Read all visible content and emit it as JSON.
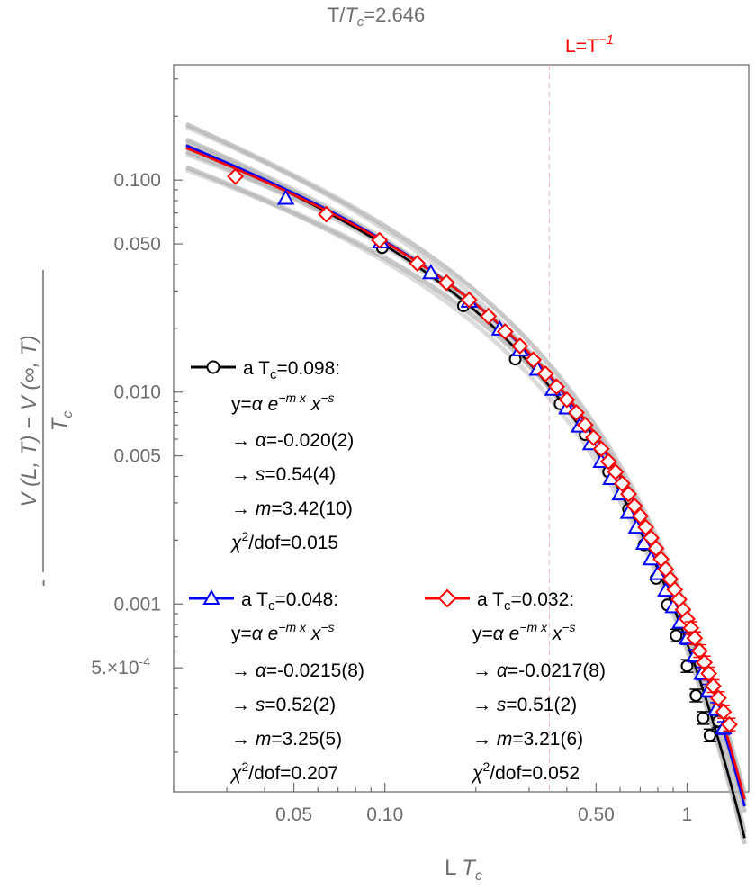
{
  "chart_data": {
    "type": "scatter",
    "title": "T/T_c=2.646",
    "title_parts": {
      "T": "T/",
      "Tc": "T",
      "sub": "c",
      "rest": "=2.646"
    },
    "xlabel": "L T_c",
    "xlabel_parts": {
      "L": "L ",
      "T": "T",
      "sub": "c"
    },
    "ylabel": "-(V(L, T) - V(∞, T))/T_c",
    "ylabel_parts": {
      "minus": "-",
      "num": "V (L, T) − V (∞, T)",
      "den": "T",
      "sub": "c"
    },
    "xscale": "log",
    "yscale": "log",
    "xlim": [
      0.02,
      1.6
    ],
    "ylim": [
      0.00013,
      0.35
    ],
    "grid": false,
    "xticks": [
      {
        "v": 0.05,
        "label": "0.05"
      },
      {
        "v": 0.1,
        "label": "0.10"
      },
      {
        "v": 0.5,
        "label": "0.50"
      },
      {
        "v": 1,
        "label": "1"
      }
    ],
    "yticks": [
      {
        "v": 0.1,
        "label": "0.100"
      },
      {
        "v": 0.05,
        "label": "0.050"
      },
      {
        "v": 0.01,
        "label": "0.010"
      },
      {
        "v": 0.005,
        "label": "0.005"
      },
      {
        "v": 0.001,
        "label": "0.001"
      },
      {
        "v": 0.0005,
        "label": "5.×10",
        "exp": "-4"
      }
    ],
    "reference_line": {
      "x": 0.35,
      "label": "L=T",
      "exp": "−1",
      "color": "#ff0000"
    },
    "series": [
      {
        "name": "a T_c=0.098",
        "color": "#000000",
        "marker": "circle",
        "alpha": -0.02,
        "s": 0.54,
        "m": 3.42,
        "fit_x": [
          0.022,
          1.55
        ],
        "points": {
          "x": [
            0.098,
            0.182,
            0.27,
            0.38,
            0.46,
            0.55,
            0.64,
            0.72,
            0.79,
            0.86,
            0.92,
            1.0,
            1.07,
            1.13,
            1.19,
            1.27
          ],
          "y": [
            0.048,
            0.0255,
            0.0143,
            0.0088,
            0.0063,
            0.0042,
            0.0028,
            0.0019,
            0.00132,
            0.00099,
            0.00071,
            0.00051,
            0.00037,
            0.00029,
            0.00024,
            0.00028
          ]
        }
      },
      {
        "name": "a T_c=0.048",
        "color": "#0000ff",
        "marker": "triangle",
        "alpha": -0.0215,
        "s": 0.52,
        "m": 3.25,
        "fit_x": [
          0.022,
          1.55
        ],
        "points": {
          "x": [
            0.047,
            0.097,
            0.142,
            0.19,
            0.24,
            0.28,
            0.32,
            0.36,
            0.4,
            0.44,
            0.48,
            0.52,
            0.56,
            0.6,
            0.64,
            0.68,
            0.72,
            0.76,
            0.8,
            0.85,
            0.9,
            0.95,
            1.0,
            1.06,
            1.12,
            1.18,
            1.25,
            1.32
          ],
          "y": [
            0.082,
            0.051,
            0.0365,
            0.0268,
            0.0198,
            0.0158,
            0.0128,
            0.0103,
            0.0084,
            0.0069,
            0.0057,
            0.0047,
            0.0039,
            0.0033,
            0.0027,
            0.0023,
            0.00193,
            0.00163,
            0.00139,
            0.00116,
            0.00097,
            0.00082,
            0.00069,
            0.00057,
            0.00047,
            0.00039,
            0.00032,
            0.00026
          ]
        }
      },
      {
        "name": "a T_c=0.032",
        "color": "#ff0000",
        "marker": "diamond",
        "alpha": -0.0217,
        "s": 0.51,
        "m": 3.21,
        "fit_x": [
          0.022,
          1.55
        ],
        "points": {
          "x": [
            0.032,
            0.064,
            0.096,
            0.128,
            0.16,
            0.19,
            0.22,
            0.25,
            0.28,
            0.31,
            0.34,
            0.37,
            0.4,
            0.43,
            0.46,
            0.49,
            0.52,
            0.55,
            0.58,
            0.61,
            0.64,
            0.67,
            0.7,
            0.73,
            0.76,
            0.79,
            0.82,
            0.85,
            0.88,
            0.91,
            0.94,
            0.97,
            1.0,
            1.03,
            1.06,
            1.1,
            1.14,
            1.18,
            1.22,
            1.27,
            1.32,
            1.38
          ],
          "y": [
            0.104,
            0.069,
            0.052,
            0.0405,
            0.0328,
            0.0272,
            0.0228,
            0.0193,
            0.0165,
            0.0142,
            0.0122,
            0.0106,
            0.0092,
            0.008,
            0.007,
            0.0061,
            0.0054,
            0.0047,
            0.0042,
            0.0037,
            0.0033,
            0.0029,
            0.0026,
            0.0023,
            0.00205,
            0.00183,
            0.00163,
            0.00146,
            0.00131,
            0.00117,
            0.00105,
            0.00094,
            0.00085,
            0.00077,
            0.00069,
            0.0006,
            0.00053,
            0.00047,
            0.00041,
            0.00036,
            0.00031,
            0.00027
          ]
        }
      }
    ]
  },
  "legend": {
    "black": {
      "label": "a T",
      "sub": "c",
      "value": "=0.098:",
      "formula": {
        "y": "y=",
        "alpha": "α",
        "e": "e",
        "exp": "−m x",
        "x": "x",
        "xexp": "−s"
      },
      "lines": [
        {
          "arrow": "→ ",
          "sym": "α",
          "val": "=-0.020(2)"
        },
        {
          "arrow": "→ ",
          "sym": "s",
          "val": "=0.54(4)"
        },
        {
          "arrow": "→ ",
          "sym": "m",
          "val": "=3.42(10)"
        }
      ],
      "chi": {
        "sym": "χ",
        "exp": "2",
        "val": "/dof=0.015"
      }
    },
    "blue": {
      "label": "a T",
      "sub": "c",
      "value": "=0.048:",
      "formula": {
        "y": "y=",
        "alpha": "α",
        "e": "e",
        "exp": "−m x",
        "x": "x",
        "xexp": "−s"
      },
      "lines": [
        {
          "arrow": "→ ",
          "sym": "α",
          "val": "=-0.0215(8)"
        },
        {
          "arrow": "→ ",
          "sym": "s",
          "val": "=0.52(2)"
        },
        {
          "arrow": "→ ",
          "sym": "m",
          "val": "=3.25(5)"
        }
      ],
      "chi": {
        "sym": "χ",
        "exp": "2",
        "val": "/dof=0.207"
      }
    },
    "red": {
      "label": "a T",
      "sub": "c",
      "value": "=0.032:",
      "formula": {
        "y": "y=",
        "alpha": "α",
        "e": "e",
        "exp": "−m x",
        "x": "x",
        "xexp": "−s"
      },
      "lines": [
        {
          "arrow": "→ ",
          "sym": "α",
          "val": "=-0.0217(8)"
        },
        {
          "arrow": "→ ",
          "sym": "s",
          "val": "=0.51(2)"
        },
        {
          "arrow": "→ ",
          "sym": "m",
          "val": "=3.21(6)"
        }
      ],
      "chi": {
        "sym": "χ",
        "exp": "2",
        "val": "/dof=0.052"
      }
    }
  }
}
